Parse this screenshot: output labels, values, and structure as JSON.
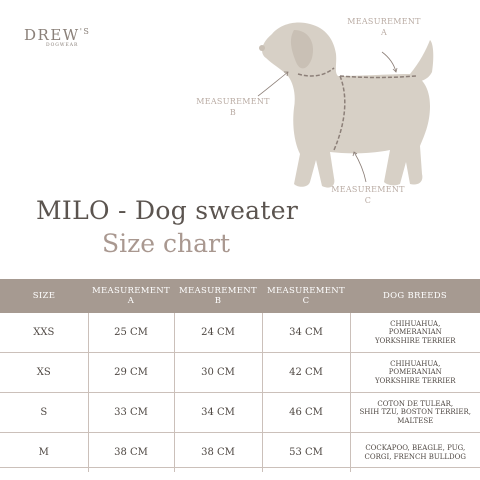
{
  "brand": {
    "name": "DREW",
    "sup": "'S",
    "sub": "DOGWEAR"
  },
  "labels": {
    "a": [
      "MEASUREMENT",
      "A"
    ],
    "b": [
      "MEASUREMENT",
      "B"
    ],
    "c": [
      "MEASUREMENT",
      "C"
    ]
  },
  "title": "MILO - Dog sweater",
  "subtitle": "Size chart",
  "table": {
    "headers": {
      "size": "SIZE",
      "a": [
        "MEASUREMENT",
        "A"
      ],
      "b": [
        "MEASUREMENT",
        "B"
      ],
      "c": [
        "MEASUREMENT",
        "C"
      ],
      "breeds": "DOG BREEDS"
    },
    "rows": [
      {
        "size": "XXS",
        "a": "25 CM",
        "b": "24 CM",
        "c": "34 CM",
        "breeds": [
          "CHIHUAHUA,",
          "POMERANIAN",
          "YORKSHIRE TERRIER"
        ]
      },
      {
        "size": "XS",
        "a": "29 CM",
        "b": "30 CM",
        "c": "42 CM",
        "breeds": [
          "CHIHUAHUA,",
          "POMERANIAN",
          "YORKSHIRE TERRIER"
        ]
      },
      {
        "size": "S",
        "a": "33 CM",
        "b": "34 CM",
        "c": "46 CM",
        "breeds": [
          "COTON DE TULEAR,",
          "SHIH TZU, BOSTON TERRIER,",
          "MALTESE"
        ]
      },
      {
        "size": "M",
        "a": "38 CM",
        "b": "38 CM",
        "c": "53 CM",
        "breeds": [
          "COCKAPOO, BEAGLE, PUG,",
          "CORGI, FRENCH BULLDOG"
        ]
      }
    ]
  },
  "colors": {
    "dog": "#d7d0c6",
    "header_bg": "#a69a91",
    "measure_line": "#8c7f78"
  }
}
